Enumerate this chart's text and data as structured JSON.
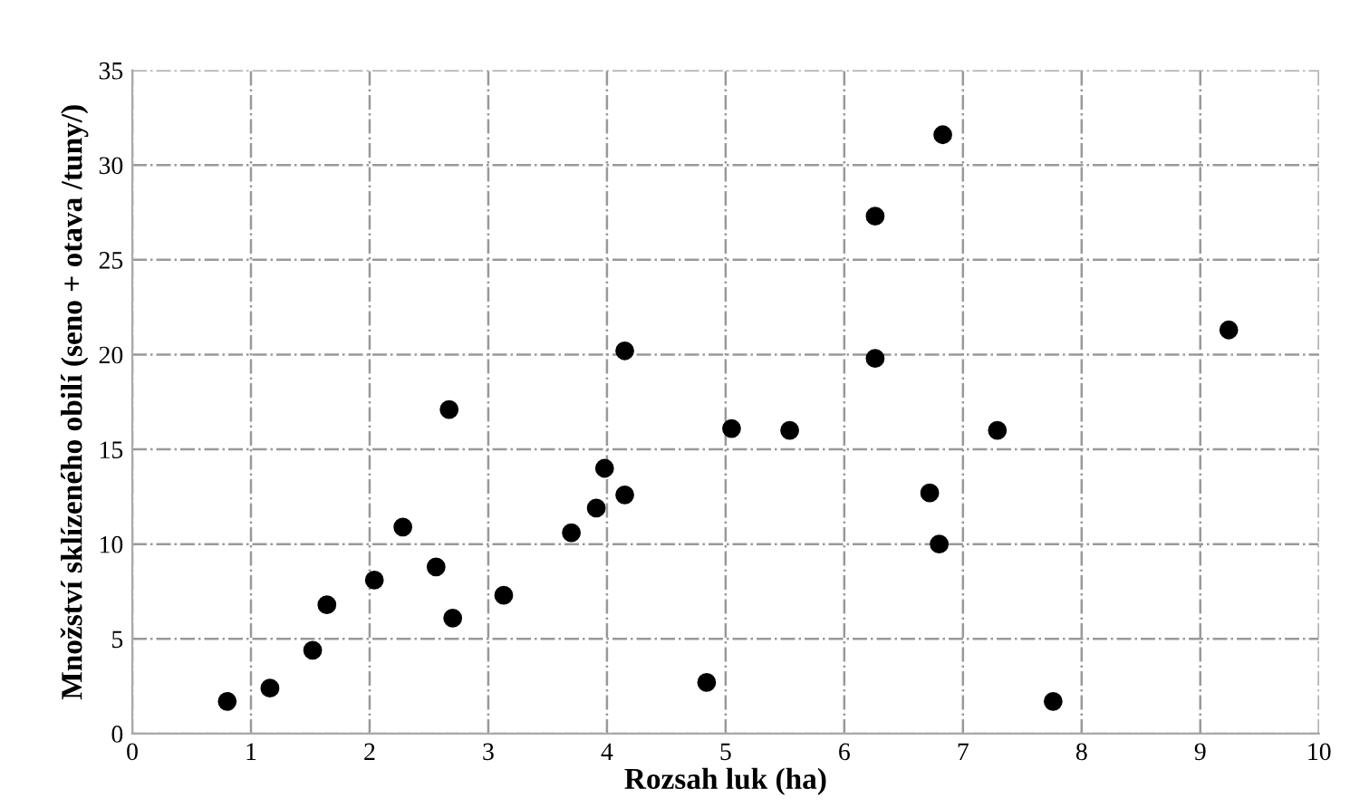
{
  "chart_data": {
    "type": "scatter",
    "xlabel": "Rozsah luk (ha)",
    "ylabel": "Množství sklízeného obilí (seno + otava /tuny/)",
    "x": [
      0.8,
      1.16,
      1.52,
      1.64,
      2.04,
      2.28,
      2.56,
      2.67,
      2.7,
      3.13,
      3.7,
      3.91,
      3.98,
      4.15,
      4.15,
      4.84,
      5.05,
      5.54,
      6.26,
      6.26,
      6.83,
      6.72,
      6.8,
      7.29,
      7.76,
      9.24
    ],
    "series": [
      {
        "color": "#000000",
        "values": [
          1.7,
          2.4,
          4.4,
          6.8,
          8.1,
          10.9,
          8.8,
          17.1,
          6.1,
          7.3,
          10.6,
          11.9,
          14.0,
          20.2,
          12.6,
          2.7,
          16.1,
          16.0,
          19.8,
          27.3,
          31.6,
          12.7,
          10.0,
          16.0,
          1.7,
          21.3
        ]
      }
    ],
    "xlim": [
      0,
      10
    ],
    "xticks": [
      0,
      1,
      2,
      3,
      4,
      5,
      6,
      7,
      8,
      9,
      10
    ],
    "ylim": [
      0,
      35
    ],
    "yticks": [
      0,
      5,
      10,
      15,
      20,
      25,
      30,
      35
    ],
    "grid": true,
    "marker": "circle"
  }
}
